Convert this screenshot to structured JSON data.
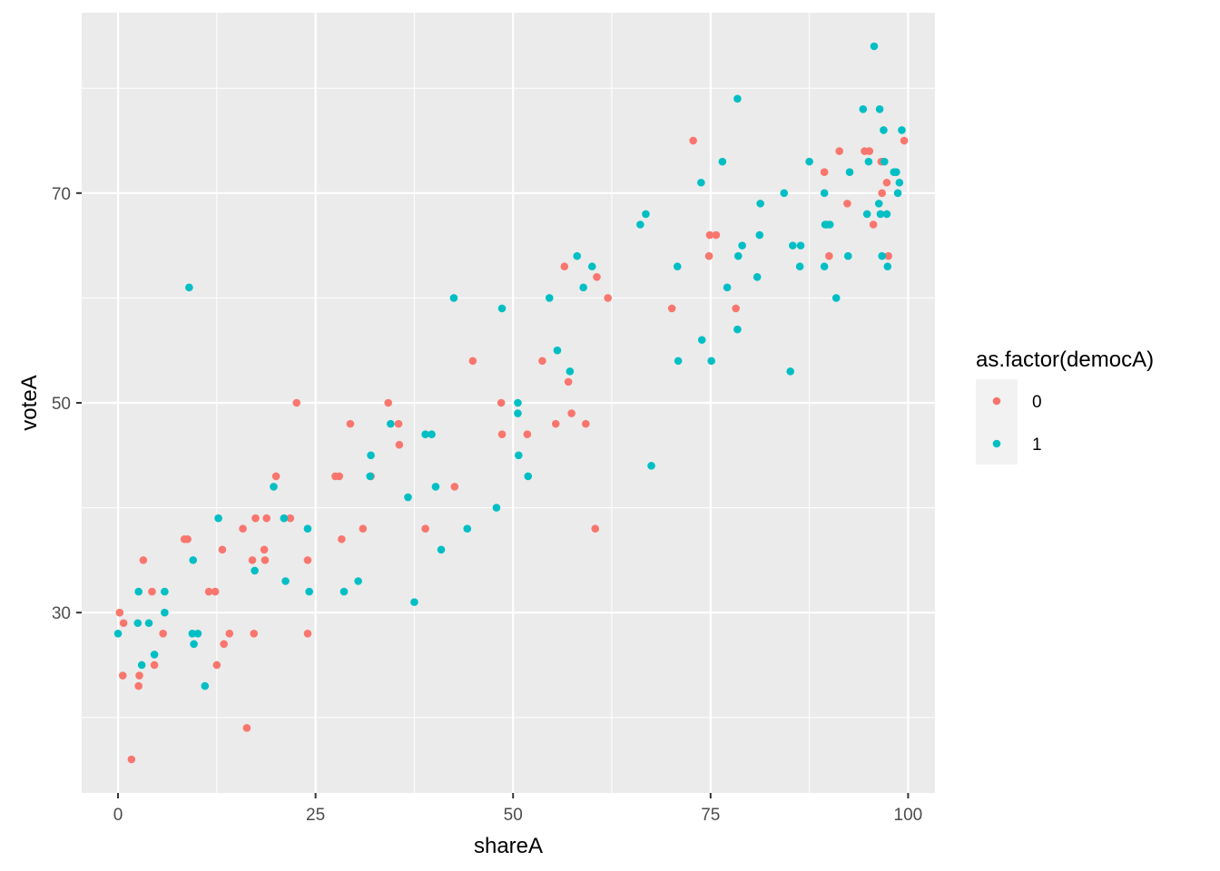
{
  "chart_data": {
    "type": "scatter",
    "title": "",
    "xlabel": "shareA",
    "ylabel": "voteA",
    "xlim": [
      -4.6,
      103.4
    ],
    "ylim": [
      12.8,
      87.2
    ],
    "x_ticks": [
      0,
      25,
      50,
      75,
      100
    ],
    "y_ticks": [
      30,
      50,
      70
    ],
    "y_minor": [
      20,
      40,
      60,
      80
    ],
    "x_minor": [
      12.5,
      37.5,
      62.5,
      87.5
    ],
    "grid": true,
    "legend": {
      "title": "as.factor(democA)",
      "position": "right"
    },
    "colors": {
      "panel": "#EBEBEB",
      "grid": "#FFFFFF",
      "0": "#F8766D",
      "1": "#00BFC4"
    },
    "series": [
      {
        "name": "0",
        "color": "#F8766D",
        "points": [
          [
            0.2,
            30
          ],
          [
            0.7,
            29
          ],
          [
            0.6,
            24
          ],
          [
            1.7,
            16
          ],
          [
            2.6,
            23
          ],
          [
            2.7,
            24
          ],
          [
            3.2,
            35
          ],
          [
            4.3,
            32
          ],
          [
            4.6,
            25
          ],
          [
            5.7,
            28
          ],
          [
            8.4,
            37
          ],
          [
            8.8,
            37
          ],
          [
            11.5,
            32
          ],
          [
            12.3,
            32
          ],
          [
            12.5,
            25
          ],
          [
            13.2,
            36
          ],
          [
            13.4,
            27
          ],
          [
            14.1,
            28
          ],
          [
            15.8,
            38
          ],
          [
            16.3,
            19
          ],
          [
            17.0,
            35
          ],
          [
            17.2,
            28
          ],
          [
            17.4,
            39
          ],
          [
            18.5,
            36
          ],
          [
            18.6,
            35
          ],
          [
            18.8,
            39
          ],
          [
            20.0,
            43
          ],
          [
            21.8,
            39
          ],
          [
            22.6,
            50
          ],
          [
            24.0,
            35
          ],
          [
            24.0,
            28
          ],
          [
            27.5,
            43
          ],
          [
            28.0,
            43
          ],
          [
            28.3,
            37
          ],
          [
            29.4,
            48
          ],
          [
            31.0,
            38
          ],
          [
            32.0,
            43
          ],
          [
            34.2,
            50
          ],
          [
            35.5,
            48
          ],
          [
            35.6,
            46
          ],
          [
            38.9,
            38
          ],
          [
            42.6,
            42
          ],
          [
            44.9,
            54
          ],
          [
            48.5,
            50
          ],
          [
            48.6,
            47
          ],
          [
            51.8,
            47
          ],
          [
            53.7,
            54
          ],
          [
            55.4,
            48
          ],
          [
            56.5,
            63
          ],
          [
            57.0,
            52
          ],
          [
            57.4,
            49
          ],
          [
            59.2,
            48
          ],
          [
            60.4,
            38
          ],
          [
            60.6,
            62
          ],
          [
            62.0,
            60
          ],
          [
            70.1,
            59
          ],
          [
            72.8,
            75
          ],
          [
            74.8,
            64
          ],
          [
            74.9,
            66
          ],
          [
            75.7,
            66
          ],
          [
            78.2,
            59
          ],
          [
            89.4,
            72
          ],
          [
            90.0,
            64
          ],
          [
            91.3,
            74
          ],
          [
            92.3,
            69
          ],
          [
            94.5,
            74
          ],
          [
            95.1,
            74
          ],
          [
            95.6,
            67
          ],
          [
            96.6,
            73
          ],
          [
            96.7,
            70
          ],
          [
            97.3,
            71
          ],
          [
            97.5,
            64
          ],
          [
            99.5,
            75
          ]
        ]
      },
      {
        "name": "1",
        "color": "#00BFC4",
        "points": [
          [
            0.0,
            28
          ],
          [
            2.5,
            29
          ],
          [
            2.6,
            32
          ],
          [
            3.0,
            25
          ],
          [
            3.9,
            29
          ],
          [
            4.6,
            26
          ],
          [
            5.9,
            32
          ],
          [
            5.9,
            30
          ],
          [
            9.0,
            61
          ],
          [
            9.5,
            35
          ],
          [
            9.4,
            28
          ],
          [
            9.6,
            27
          ],
          [
            10.1,
            28
          ],
          [
            11.0,
            23
          ],
          [
            12.7,
            39
          ],
          [
            17.3,
            34
          ],
          [
            19.7,
            42
          ],
          [
            21.0,
            39
          ],
          [
            21.2,
            33
          ],
          [
            24.0,
            38
          ],
          [
            24.2,
            32
          ],
          [
            28.6,
            32
          ],
          [
            31.9,
            43
          ],
          [
            32.0,
            45
          ],
          [
            30.4,
            33
          ],
          [
            34.5,
            48
          ],
          [
            36.7,
            41
          ],
          [
            37.5,
            31
          ],
          [
            38.9,
            47
          ],
          [
            39.7,
            47
          ],
          [
            40.2,
            42
          ],
          [
            40.9,
            36
          ],
          [
            42.5,
            60
          ],
          [
            44.2,
            38
          ],
          [
            47.9,
            40
          ],
          [
            48.6,
            59
          ],
          [
            50.6,
            50
          ],
          [
            50.6,
            49
          ],
          [
            50.7,
            45
          ],
          [
            51.9,
            43
          ],
          [
            54.6,
            60
          ],
          [
            55.6,
            55
          ],
          [
            57.2,
            53
          ],
          [
            58.1,
            64
          ],
          [
            58.9,
            61
          ],
          [
            60.0,
            63
          ],
          [
            66.1,
            67
          ],
          [
            66.8,
            68
          ],
          [
            67.5,
            44
          ],
          [
            70.8,
            63
          ],
          [
            70.9,
            54
          ],
          [
            73.8,
            71
          ],
          [
            73.9,
            56
          ],
          [
            75.1,
            54
          ],
          [
            76.5,
            73
          ],
          [
            77.1,
            61
          ],
          [
            78.4,
            79
          ],
          [
            78.4,
            57
          ],
          [
            78.5,
            64
          ],
          [
            79.0,
            65
          ],
          [
            80.9,
            62
          ],
          [
            81.2,
            66
          ],
          [
            81.3,
            69
          ],
          [
            84.3,
            70
          ],
          [
            85.1,
            53
          ],
          [
            85.4,
            65
          ],
          [
            86.3,
            63
          ],
          [
            86.4,
            65
          ],
          [
            87.5,
            73
          ],
          [
            89.4,
            70
          ],
          [
            89.4,
            63
          ],
          [
            89.5,
            67
          ],
          [
            89.7,
            67
          ],
          [
            90.1,
            67
          ],
          [
            90.9,
            60
          ],
          [
            92.4,
            64
          ],
          [
            92.6,
            72
          ],
          [
            94.3,
            78
          ],
          [
            94.8,
            68
          ],
          [
            95.0,
            73
          ],
          [
            95.7,
            84
          ],
          [
            96.3,
            69
          ],
          [
            96.4,
            78
          ],
          [
            96.5,
            68
          ],
          [
            96.7,
            64
          ],
          [
            96.9,
            76
          ],
          [
            97.0,
            73
          ],
          [
            97.3,
            68
          ],
          [
            97.4,
            63
          ],
          [
            98.2,
            72
          ],
          [
            98.5,
            72
          ],
          [
            98.7,
            70
          ],
          [
            98.9,
            71
          ],
          [
            99.2,
            76
          ]
        ]
      }
    ]
  }
}
